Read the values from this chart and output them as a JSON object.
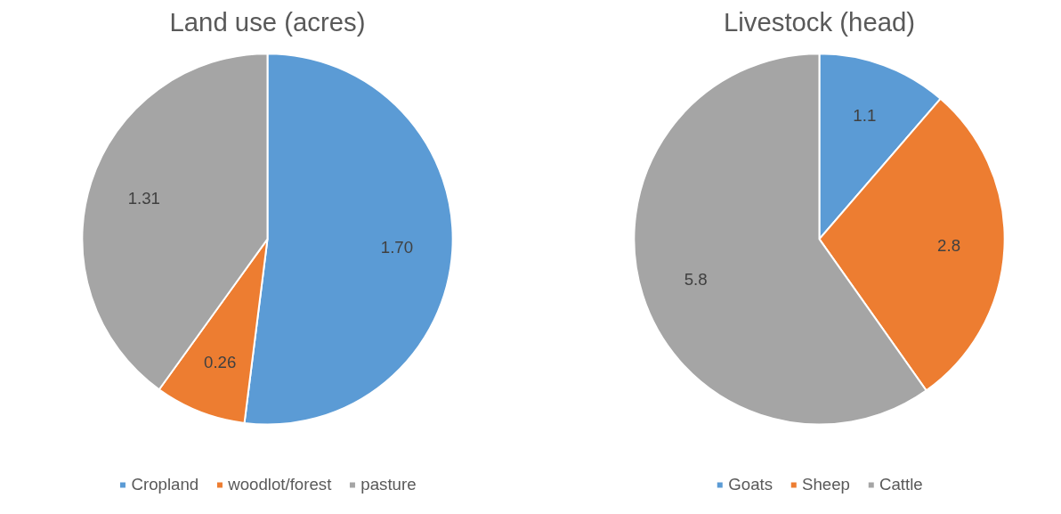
{
  "chart_data": [
    {
      "type": "pie",
      "title": "Land use (acres)",
      "categories": [
        "Cropland",
        "woodlot/forest",
        "pasture"
      ],
      "values": [
        1.7,
        0.26,
        1.31
      ],
      "value_labels": [
        "1.70",
        "0.26",
        "1.31"
      ],
      "colors": [
        "#5b9bd5",
        "#ed7d31",
        "#a5a5a5"
      ],
      "legend": "bottom"
    },
    {
      "type": "pie",
      "title": "Livestock (head)",
      "categories": [
        "Goats",
        "Sheep",
        "Cattle"
      ],
      "values": [
        1.1,
        2.8,
        5.8
      ],
      "data_labels": true,
      "colors": [
        "#5b9bd5",
        "#ed7d31",
        "#a5a5a5"
      ],
      "legend": "bottom"
    }
  ]
}
